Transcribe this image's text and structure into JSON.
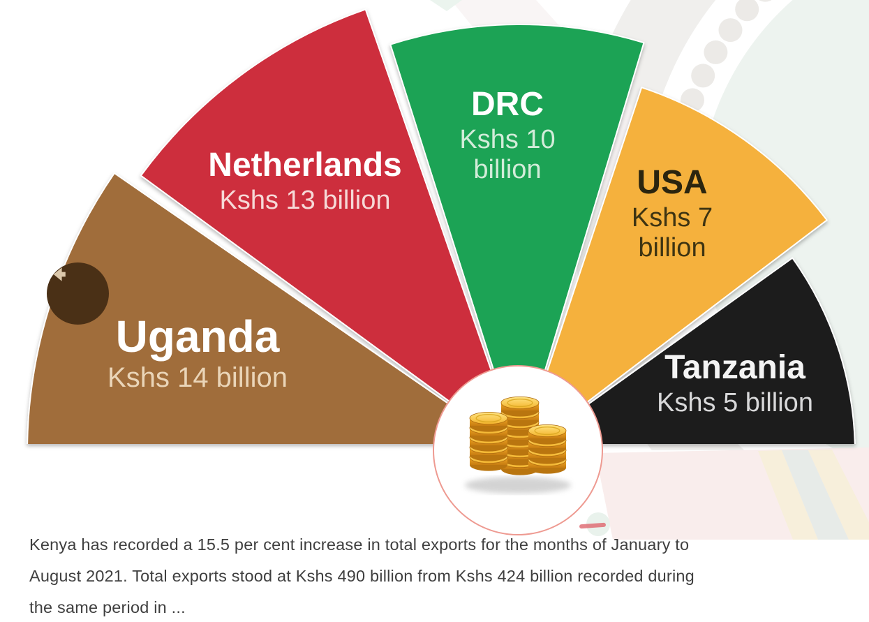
{
  "chart_data": {
    "type": "pie",
    "variant": "fan-semicircle",
    "title": "",
    "unit": "Kshs billion",
    "categories": [
      "Uganda",
      "Netherlands",
      "DRC",
      "USA",
      "Tanzania"
    ],
    "values": [
      14,
      13,
      10,
      7,
      5
    ],
    "legend_position": "labels-on-segments",
    "center_icon": "gold-coin-stacks",
    "center_ring_color": "#ee9a91",
    "segments": [
      {
        "label": "Uganda",
        "value": 14,
        "value_label": "Kshs 14 billion",
        "color": "#a06d3a",
        "name_color": "#ffffff",
        "value_color": "#ead5b8"
      },
      {
        "label": "Netherlands",
        "value": 13,
        "value_label": "Kshs 13 billion",
        "color": "#cd2e3e",
        "name_color": "#ffffff",
        "value_color": "#f6d9d7"
      },
      {
        "label": "DRC",
        "value": 10,
        "value_label": "Kshs 10 billion",
        "color": "#1fa355",
        "name_color": "#ffffff",
        "value_color": "#d2ecd9"
      },
      {
        "label": "USA",
        "value": 7,
        "value_label": "Kshs 7 billion",
        "color": "#f5b13d",
        "name_color": "#2b250f",
        "value_color": "#3e3412"
      },
      {
        "label": "Tanzania",
        "value": 5,
        "value_label": "Kshs 5 billion",
        "color": "#1d1d1f",
        "name_color": "#f4f4f4",
        "value_color": "#d8d8d9"
      }
    ]
  },
  "nav": {
    "back_icon": "left-arrow",
    "back_button_color": "#4a3016"
  },
  "article": {
    "text_color": "#3f3f3f",
    "lines": [
      "Kenya has recorded a 15.5 per cent increase in total exports for the months of January to",
      "August 2021. Total exports stood at Kshs 490 billion from Kshs 424 billion recorded during",
      "the same period in ..."
    ]
  }
}
